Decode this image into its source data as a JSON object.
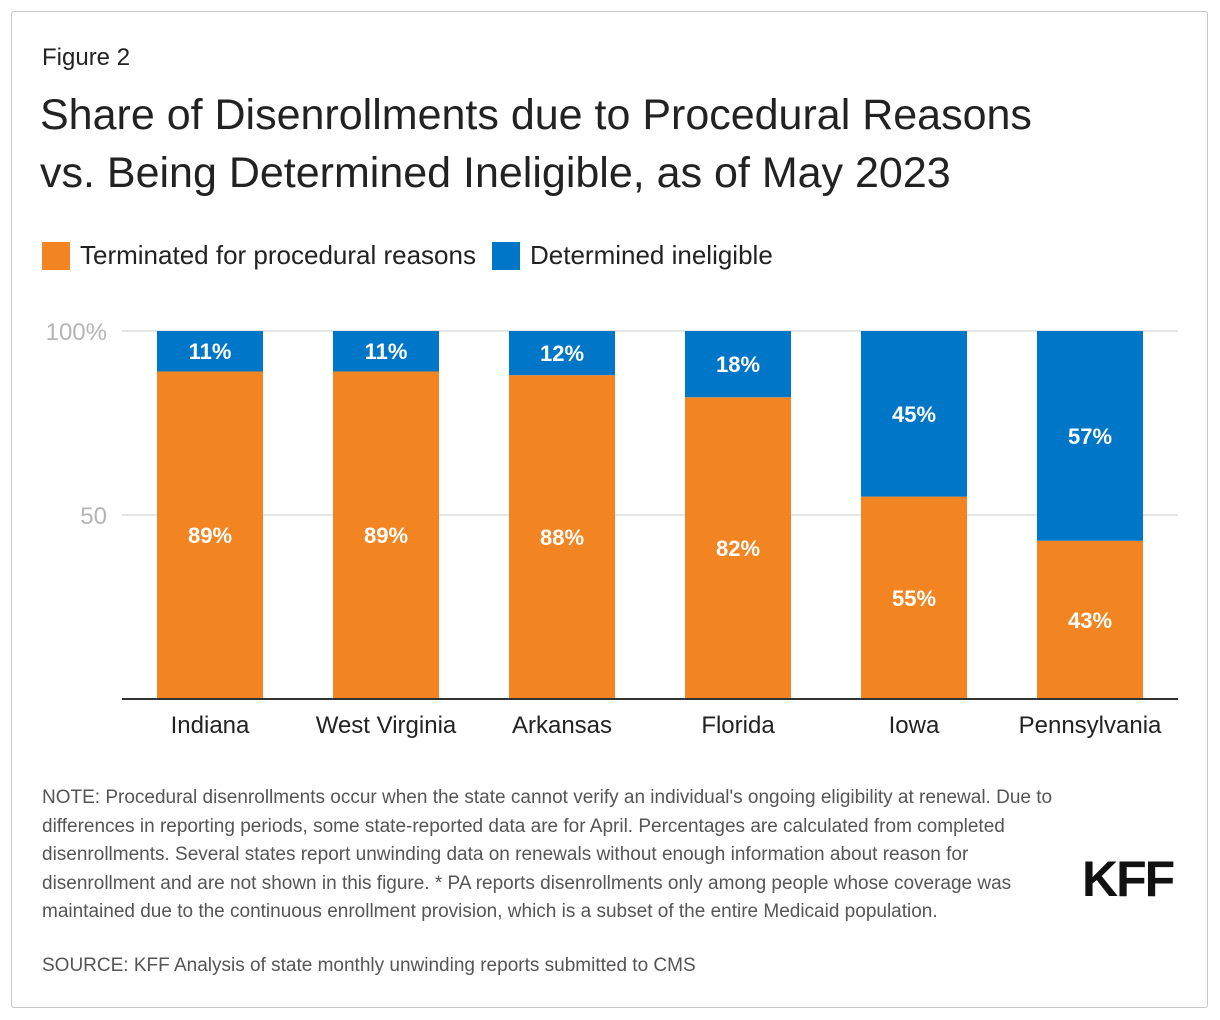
{
  "figure_label": "Figure 2",
  "title_line1": "Share of Disenrollments due to Procedural Reasons",
  "title_line2": "vs. Being Determined Ineligible, as of May 2023",
  "colors": {
    "procedural": "#f28521",
    "ineligible": "#0076c8"
  },
  "legend": [
    {
      "label": "Terminated for procedural reasons",
      "color": "#f28521"
    },
    {
      "label": "Determined ineligible",
      "color": "#0076c8"
    }
  ],
  "chart_data": {
    "type": "bar",
    "stacked": true,
    "categories": [
      "Indiana",
      "West Virginia",
      "Arkansas",
      "Florida",
      "Iowa",
      "Pennsylvania"
    ],
    "series": [
      {
        "name": "Terminated for procedural reasons",
        "values": [
          89,
          89,
          88,
          82,
          55,
          43
        ],
        "labels": [
          "89%",
          "89%",
          "88%",
          "82%",
          "55%",
          "43%"
        ]
      },
      {
        "name": "Determined ineligible",
        "values": [
          11,
          11,
          12,
          18,
          45,
          57
        ],
        "labels": [
          "11%",
          "11%",
          "12%",
          "18%",
          "45%",
          "57%"
        ]
      }
    ],
    "y_ticks": [
      {
        "value": 100,
        "label": "100%"
      },
      {
        "value": 50,
        "label": "50"
      }
    ],
    "ylim": [
      0,
      100
    ],
    "grid": true,
    "legend_position": "top-left"
  },
  "note": "NOTE: Procedural disenrollments occur when the state cannot verify an individual's ongoing eligibility at renewal. Due to differences in reporting periods, some state-reported data are for April. Percentages are calculated from completed disenrollments. Several states report unwinding data on renewals without enough information about reason for disenrollment and are not shown in this figure. * PA reports disenrollments only among people whose coverage was maintained due to the continuous enrollment provision, which is a subset of the entire Medicaid population.",
  "source": "SOURCE: KFF Analysis of state monthly unwinding reports submitted to CMS",
  "logo": "KFF"
}
